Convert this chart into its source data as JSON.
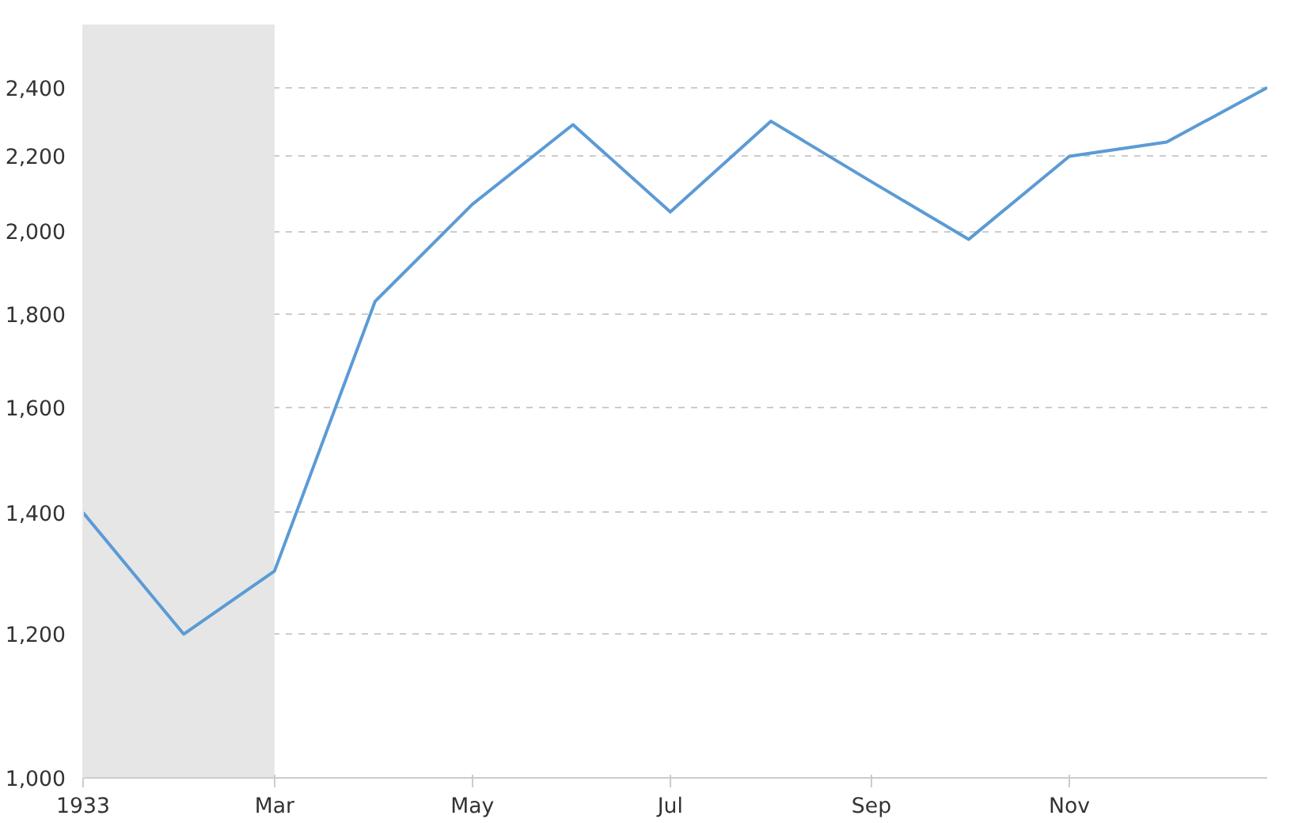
{
  "chart_data": {
    "type": "line",
    "x": [
      "1933-01",
      "1933-02",
      "1933-03",
      "1933-04",
      "1933-05",
      "1933-06",
      "1933-07",
      "1933-08",
      "1933-09",
      "1933-10",
      "1933-11",
      "1933-12",
      "1934-01"
    ],
    "series": [
      {
        "color": "#5b9bd5",
        "values": [
          1400,
          1200,
          1300,
          1830,
          2070,
          2290,
          2050,
          2300,
          2130,
          1980,
          2200,
          2240,
          2400
        ]
      }
    ],
    "log": "y",
    "ylim": [
      1000,
      2600
    ],
    "yticks": [
      {
        "value": 1000,
        "label": "1,000"
      },
      {
        "value": 1200,
        "label": "1,200"
      },
      {
        "value": 1400,
        "label": "1,400"
      },
      {
        "value": 1600,
        "label": "1,600"
      },
      {
        "value": 1800,
        "label": "1,800"
      },
      {
        "value": 2000,
        "label": "2,000"
      },
      {
        "value": 2200,
        "label": "2,200"
      },
      {
        "value": 2400,
        "label": "2,400"
      }
    ],
    "xlim": [
      "1933-01",
      "1934-01"
    ],
    "xticks": [
      {
        "value": "1933-01",
        "label": "1933"
      },
      {
        "value": "1933-03",
        "label": "Mar"
      },
      {
        "value": "1933-05",
        "label": "May"
      },
      {
        "value": "1933-07",
        "label": "Jul"
      },
      {
        "value": "1933-09",
        "label": "Sep"
      },
      {
        "value": "1933-11",
        "label": "Nov"
      }
    ],
    "bands": [
      {
        "axis": "x",
        "from": "1933-01",
        "to": "1933-03",
        "color": "#e6e6e6"
      }
    ],
    "grid": "y",
    "marker": "none",
    "line_style": "solid"
  }
}
